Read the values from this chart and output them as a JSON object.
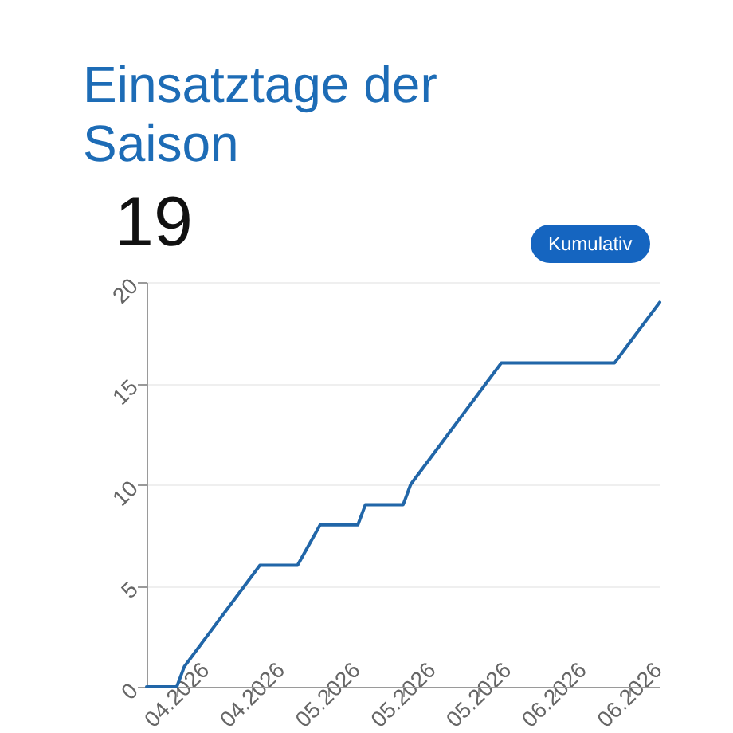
{
  "chart_data": {
    "type": "line",
    "title": "Einsatztage der Saison",
    "subtitle": "19",
    "annotations": [
      "Kumulativ"
    ],
    "x": [
      "2026-04-11",
      "2026-04-15",
      "2026-04-16",
      "2026-04-24",
      "2026-04-26",
      "2026-05-01",
      "2026-05-04",
      "2026-05-09",
      "2026-05-10",
      "2026-05-15",
      "2026-05-16",
      "2026-05-26",
      "2026-05-28",
      "2026-06-12",
      "2026-06-14",
      "2026-06-18"
    ],
    "values": [
      0,
      0,
      1,
      5,
      6,
      6,
      8,
      8,
      9,
      9,
      10,
      15,
      16,
      16,
      17,
      19
    ],
    "color": "#2166a8",
    "xlim": [
      "2026-04-11",
      "2026-06-18"
    ],
    "xticks": [
      {
        "value": "2026-04-15",
        "label": "04.2026"
      },
      {
        "value": "2026-04-25",
        "label": "04.2026"
      },
      {
        "value": "2026-05-05",
        "label": "05.2026"
      },
      {
        "value": "2026-05-15",
        "label": "05.2026"
      },
      {
        "value": "2026-05-25",
        "label": "05.2026"
      },
      {
        "value": "2026-06-04",
        "label": "06.2026"
      },
      {
        "value": "2026-06-14",
        "label": "06.2026"
      }
    ],
    "ylim": [
      0,
      20
    ],
    "yticks": [
      0,
      5,
      10,
      15,
      20
    ],
    "grid": "y"
  }
}
